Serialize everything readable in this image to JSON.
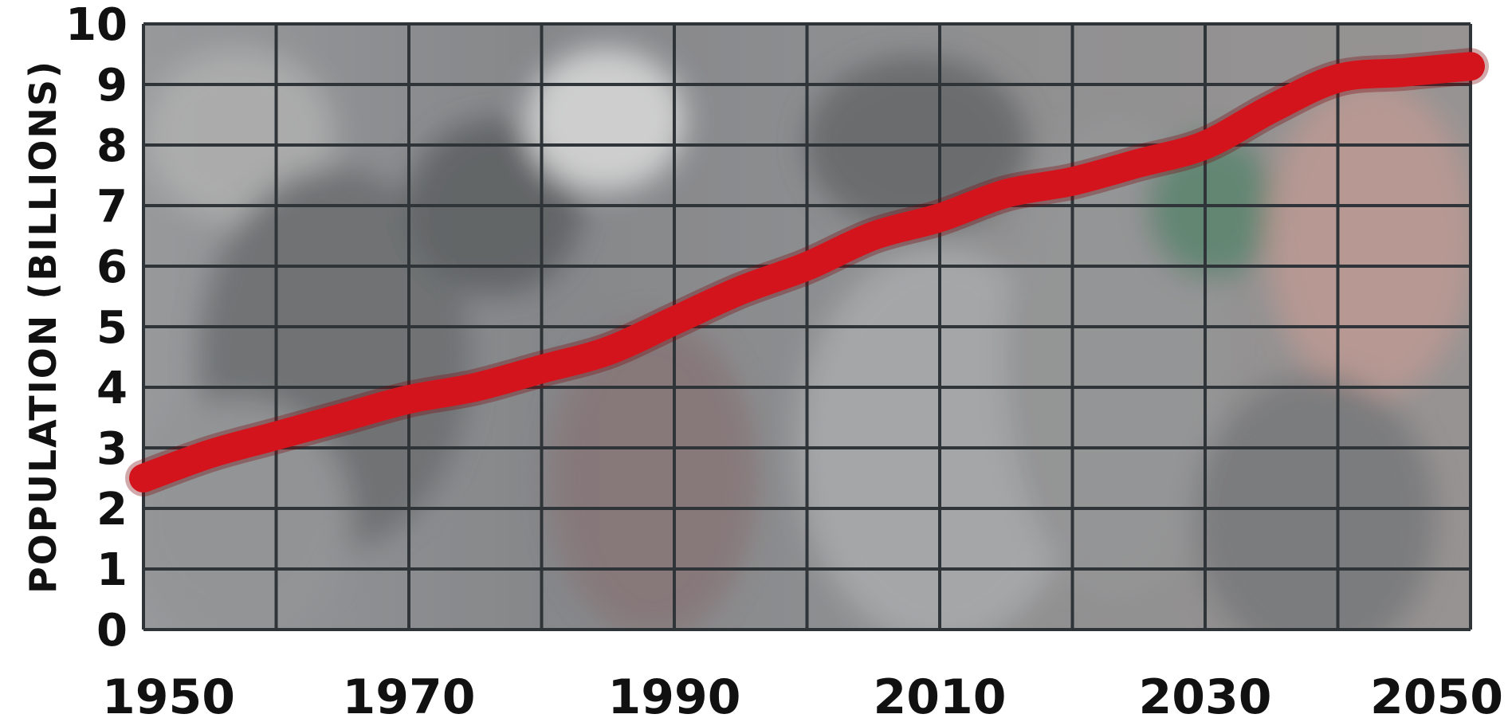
{
  "chart_data": {
    "type": "line",
    "ylabel": "POPULATION (BILLIONS)",
    "xlabel": "",
    "x_ticks": [
      1950,
      1970,
      1990,
      2010,
      2030,
      2050
    ],
    "y_ticks": [
      0,
      1,
      2,
      3,
      4,
      5,
      6,
      7,
      8,
      9,
      10
    ],
    "xlim": [
      1950,
      2050
    ],
    "ylim": [
      0,
      10
    ],
    "grid": true,
    "background": "photo of a crowd (grayscale)",
    "series": [
      {
        "color": "#d4141c",
        "x": [
          1950,
          1955,
          1960,
          1965,
          1970,
          1975,
          1980,
          1985,
          1990,
          1995,
          2000,
          2005,
          2010,
          2015,
          2020,
          2025,
          2030,
          2035,
          2040,
          2045,
          2050
        ],
        "values": [
          2.5,
          2.9,
          3.2,
          3.5,
          3.8,
          4.0,
          4.3,
          4.6,
          5.1,
          5.6,
          6.0,
          6.5,
          6.8,
          7.2,
          7.4,
          7.7,
          8.0,
          8.6,
          9.1,
          9.2,
          9.3
        ]
      }
    ]
  }
}
